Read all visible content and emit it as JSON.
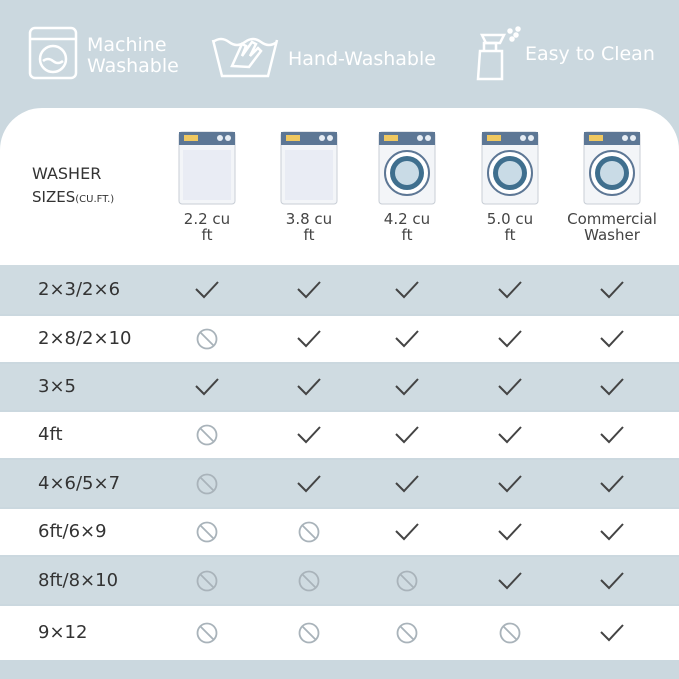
{
  "features": [
    "Machine Washable",
    "Hand-Washable",
    "Easy to Clean"
  ],
  "table": {
    "header_title": "WASHER",
    "header_subtitle": "SIZES",
    "header_unit": "(CU.FT.)",
    "columns": [
      "2.2 cu ft",
      "3.8 cu ft",
      "4.2 cu ft",
      "5.0 cu ft",
      "Commercial Washer"
    ],
    "rows": [
      {
        "label": "2×3/2×6",
        "fits": [
          true,
          true,
          true,
          true,
          true
        ]
      },
      {
        "label": "2×8/2×10",
        "fits": [
          false,
          true,
          true,
          true,
          true
        ]
      },
      {
        "label": "3×5",
        "fits": [
          true,
          true,
          true,
          true,
          true
        ]
      },
      {
        "label": "4ft",
        "fits": [
          false,
          true,
          true,
          true,
          true
        ]
      },
      {
        "label": "4×6/5×7",
        "fits": [
          false,
          true,
          true,
          true,
          true
        ]
      },
      {
        "label": "6ft/6×9",
        "fits": [
          false,
          false,
          true,
          true,
          true
        ]
      },
      {
        "label": "8ft/8×10",
        "fits": [
          false,
          false,
          false,
          true,
          true
        ]
      },
      {
        "label": "9×12",
        "fits": [
          false,
          false,
          false,
          false,
          true
        ]
      }
    ]
  }
}
